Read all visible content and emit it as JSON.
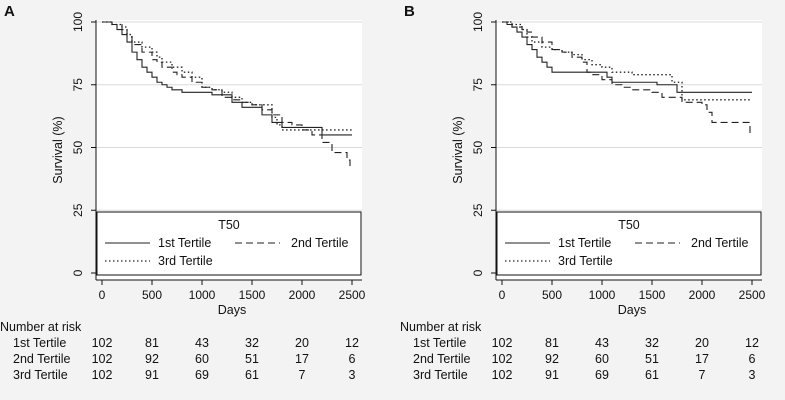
{
  "figure": {
    "panels": [
      "A",
      "B"
    ]
  },
  "chart_data": [
    {
      "panel": "A",
      "type": "line",
      "subtype": "kaplan-meier",
      "xlabel": "Days",
      "ylabel": "Survival (%)",
      "xlim": [
        0,
        2500
      ],
      "ylim": [
        0,
        100
      ],
      "xticks": [
        0,
        500,
        1000,
        1500,
        2000,
        2500
      ],
      "yticks": [
        0,
        25,
        50,
        75,
        100
      ],
      "legend": {
        "title": "T50",
        "position": "bottom-inside",
        "entries": [
          "1st Tertile",
          "2nd Tertile",
          "3rd Tertile"
        ]
      },
      "series": [
        {
          "name": "1st Tertile",
          "style": "solid",
          "x": [
            0,
            100,
            150,
            200,
            250,
            300,
            350,
            400,
            450,
            500,
            550,
            600,
            650,
            700,
            750,
            800,
            900,
            1000,
            1100,
            1200,
            1300,
            1400,
            1500,
            1600,
            1700,
            1800,
            1900,
            2000,
            2100,
            2200,
            2500
          ],
          "y": [
            100,
            99,
            97,
            95,
            92,
            88,
            85,
            82,
            80,
            78,
            76,
            75,
            74,
            73,
            73,
            72,
            72,
            72,
            71,
            71,
            68,
            66,
            66,
            63,
            60,
            58,
            58,
            58,
            58,
            55,
            55
          ]
        },
        {
          "name": "2nd Tertile",
          "style": "dashed",
          "x": [
            0,
            100,
            200,
            250,
            300,
            400,
            500,
            550,
            600,
            700,
            750,
            800,
            900,
            1000,
            1100,
            1200,
            1300,
            1400,
            1500,
            1600,
            1700,
            1800,
            1900,
            2000,
            2100,
            2200,
            2300,
            2350,
            2450,
            2480,
            2500
          ],
          "y": [
            100,
            99,
            97,
            94,
            91,
            88,
            85,
            84,
            82,
            80,
            79,
            78,
            76,
            74,
            73,
            70,
            69,
            68,
            67,
            65,
            63,
            60,
            59,
            57,
            55,
            52,
            48,
            48,
            45,
            42,
            42
          ]
        },
        {
          "name": "3rd Tertile",
          "style": "dotted",
          "x": [
            0,
            100,
            200,
            250,
            300,
            400,
            500,
            550,
            600,
            700,
            800,
            900,
            1000,
            1100,
            1200,
            1300,
            1400,
            1500,
            1600,
            1700,
            1750,
            1800,
            1900,
            2000,
            2100,
            2200,
            2500
          ],
          "y": [
            100,
            99,
            98,
            95,
            92,
            90,
            88,
            86,
            84,
            82,
            80,
            78,
            74,
            73,
            72,
            70,
            68,
            67,
            67,
            62,
            59,
            57,
            57,
            57,
            57,
            57,
            57
          ]
        }
      ],
      "risk_table": {
        "title": "Number at risk",
        "rows": [
          {
            "label": "1st Tertile",
            "values": [
              "102",
              "81",
              "43",
              "32",
              "20",
              "12"
            ]
          },
          {
            "label": "2nd Tertile",
            "values": [
              "102",
              "92",
              "60",
              "51",
              "17",
              "6"
            ]
          },
          {
            "label": "3rd Tertile",
            "values": [
              "102",
              "91",
              "69",
              "61",
              "7",
              "3"
            ]
          }
        ]
      }
    },
    {
      "panel": "B",
      "type": "line",
      "subtype": "kaplan-meier",
      "xlabel": "Days",
      "ylabel": "Survival (%)",
      "xlim": [
        0,
        2500
      ],
      "ylim": [
        0,
        100
      ],
      "xticks": [
        0,
        500,
        1000,
        1500,
        2000,
        2500
      ],
      "yticks": [
        0,
        25,
        50,
        75,
        100
      ],
      "legend": {
        "title": "T50",
        "position": "bottom-inside",
        "entries": [
          "1st Tertile",
          "2nd Tertile",
          "3rd Tertile"
        ]
      },
      "series": [
        {
          "name": "1st Tertile",
          "style": "solid",
          "x": [
            0,
            50,
            100,
            150,
            200,
            250,
            300,
            350,
            400,
            450,
            500,
            1000,
            1050,
            1100,
            1500,
            1550,
            1600,
            1700,
            1750,
            2500
          ],
          "y": [
            100,
            99,
            98,
            96,
            94,
            91,
            89,
            86,
            84,
            82,
            80,
            80,
            78,
            76,
            76,
            75,
            75,
            75,
            72,
            72
          ]
        },
        {
          "name": "2nd Tertile",
          "style": "dashed",
          "x": [
            0,
            100,
            200,
            250,
            300,
            400,
            500,
            600,
            700,
            800,
            850,
            900,
            1000,
            1100,
            1200,
            1300,
            1500,
            1600,
            1800,
            2000,
            2050,
            2100,
            2400,
            2480,
            2500
          ],
          "y": [
            100,
            98,
            97,
            96,
            94,
            92,
            89,
            88,
            86,
            84,
            80,
            79,
            77,
            75,
            74,
            73,
            72,
            70,
            68,
            67,
            64,
            60,
            60,
            55,
            55
          ]
        },
        {
          "name": "3rd Tertile",
          "style": "dotted",
          "x": [
            0,
            100,
            200,
            250,
            300,
            400,
            500,
            600,
            700,
            800,
            900,
            1000,
            1100,
            1200,
            1300,
            1400,
            1600,
            1700,
            1800,
            2500
          ],
          "y": [
            100,
            99,
            97,
            94,
            92,
            90,
            89,
            88,
            87,
            85,
            83,
            82,
            80,
            80,
            79,
            79,
            79,
            76,
            69,
            69
          ]
        }
      ],
      "risk_table": {
        "title": "Number at risk",
        "rows": [
          {
            "label": "1st Tertile",
            "values": [
              "102",
              "81",
              "43",
              "32",
              "20",
              "12"
            ]
          },
          {
            "label": "2nd Tertile",
            "values": [
              "102",
              "92",
              "60",
              "51",
              "17",
              "6"
            ]
          },
          {
            "label": "3rd Tertile",
            "values": [
              "102",
              "91",
              "69",
              "61",
              "7",
              "3"
            ]
          }
        ]
      }
    }
  ]
}
